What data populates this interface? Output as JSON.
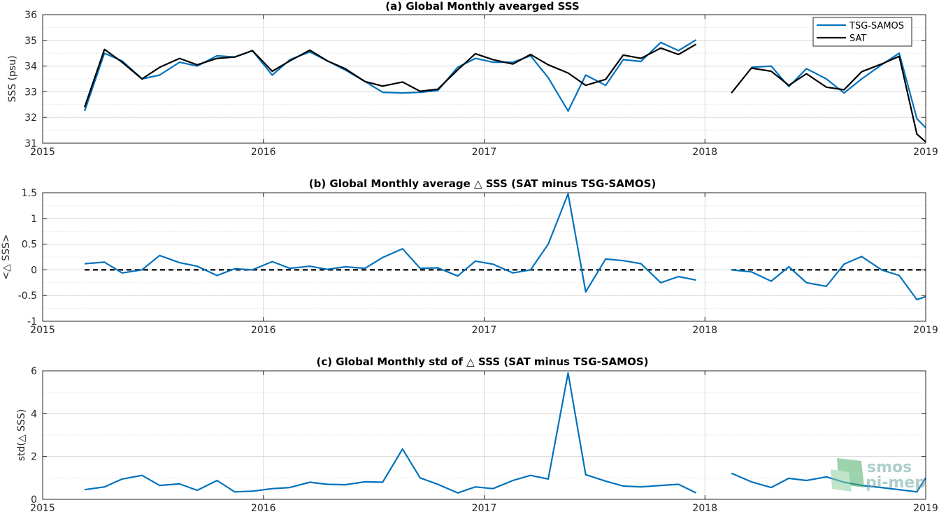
{
  "figure": {
    "logo": {
      "line1": "smos",
      "line2": "pi-mep"
    }
  },
  "colors": {
    "tsg": "#0072BD",
    "sat": "#000000",
    "zero_line": "#000000",
    "grid": "#d9d9d9"
  },
  "chart_data": [
    {
      "type": "line",
      "title": "(a) Global Monthly avearged SSS",
      "xlabel": "",
      "ylabel": "SSS (psu)",
      "xlim": [
        2015,
        2019
      ],
      "ylim": [
        31,
        36
      ],
      "xticks": [
        2015,
        2016,
        2017,
        2018,
        2019
      ],
      "yticks": [
        31,
        32,
        33,
        34,
        35,
        36
      ],
      "grid": true,
      "legend": "top-right",
      "series": [
        {
          "name": "TSG-SAMOS",
          "color": "#0072BD",
          "x": [
            2015.19,
            2015.28,
            2015.36,
            2015.45,
            2015.53,
            2015.62,
            2015.7,
            2015.79,
            2015.87,
            2015.95,
            2016.04,
            2016.12,
            2016.21,
            2016.29,
            2016.37,
            2016.46,
            2016.54,
            2016.63,
            2016.71,
            2016.79,
            2016.88,
            2016.96,
            2017.04,
            2017.13,
            2017.21,
            2017.29,
            2017.38,
            2017.46,
            2017.55,
            2017.63,
            2017.71,
            2017.8,
            2017.88,
            2017.96,
            null,
            2018.21,
            2018.3,
            2018.38,
            2018.46,
            2018.55,
            2018.63,
            2018.71,
            2018.8,
            2018.88,
            2018.96,
            2019.0
          ],
          "y": [
            32.25,
            34.5,
            34.2,
            33.5,
            33.65,
            34.15,
            34.0,
            34.4,
            34.35,
            34.6,
            33.65,
            34.25,
            34.55,
            34.2,
            33.85,
            33.4,
            32.98,
            32.95,
            32.98,
            33.05,
            33.95,
            34.3,
            34.15,
            34.15,
            34.4,
            33.55,
            32.25,
            33.65,
            33.25,
            34.25,
            34.18,
            34.92,
            34.6,
            35.02,
            null,
            33.95,
            34.0,
            33.2,
            33.9,
            33.5,
            32.95,
            33.5,
            34.05,
            34.5,
            31.95,
            31.6
          ]
        },
        {
          "name": "SAT",
          "color": "#000000",
          "x": [
            2015.19,
            2015.28,
            2015.36,
            2015.45,
            2015.53,
            2015.62,
            2015.7,
            2015.79,
            2015.87,
            2015.95,
            2016.04,
            2016.12,
            2016.21,
            2016.29,
            2016.37,
            2016.46,
            2016.54,
            2016.63,
            2016.71,
            2016.79,
            2016.88,
            2016.96,
            2017.04,
            2017.13,
            2017.21,
            2017.29,
            2017.38,
            2017.46,
            2017.55,
            2017.63,
            2017.71,
            2017.8,
            2017.88,
            2017.96,
            null,
            2018.12,
            2018.21,
            2018.3,
            2018.38,
            2018.46,
            2018.55,
            2018.63,
            2018.71,
            2018.8,
            2018.88,
            2018.96,
            2019.0
          ],
          "y": [
            32.4,
            34.65,
            34.15,
            33.5,
            33.95,
            34.3,
            34.05,
            34.3,
            34.35,
            34.6,
            33.8,
            34.2,
            34.62,
            34.2,
            33.9,
            33.4,
            33.22,
            33.38,
            33.02,
            33.1,
            33.85,
            34.48,
            34.25,
            34.08,
            34.45,
            34.05,
            33.73,
            33.25,
            33.48,
            34.43,
            34.3,
            34.7,
            34.45,
            34.85,
            null,
            32.95,
            33.92,
            33.8,
            33.25,
            33.7,
            33.18,
            33.08,
            33.78,
            34.08,
            34.38,
            31.35,
            31.05
          ]
        }
      ]
    },
    {
      "type": "line",
      "title": "(b) Global Monthly average △ SSS (SAT minus TSG-SAMOS)",
      "xlabel": "",
      "ylabel": "<△ SSS>",
      "xlim": [
        2015,
        2019
      ],
      "ylim": [
        -1,
        1.5
      ],
      "xticks": [
        2015,
        2016,
        2017,
        2018,
        2019
      ],
      "yticks": [
        -1,
        -0.5,
        0,
        0.5,
        1,
        1.5
      ],
      "ytick_labels": [
        "-1",
        "-0.5",
        "0",
        "0.5",
        "1",
        "1.5"
      ],
      "grid": true,
      "zero_line_segments": [
        [
          2015.19,
          2017.96
        ],
        [
          2018.12,
          2019.0
        ]
      ],
      "series": [
        {
          "color": "#0072BD",
          "x": [
            2015.19,
            2015.28,
            2015.36,
            2015.45,
            2015.53,
            2015.62,
            2015.7,
            2015.79,
            2015.87,
            2015.95,
            2016.04,
            2016.12,
            2016.21,
            2016.29,
            2016.37,
            2016.46,
            2016.54,
            2016.63,
            2016.71,
            2016.79,
            2016.88,
            2016.96,
            2017.04,
            2017.13,
            2017.21,
            2017.29,
            2017.38,
            2017.46,
            2017.55,
            2017.63,
            2017.71,
            2017.8,
            2017.88,
            2017.96,
            null,
            2018.12,
            2018.21,
            2018.3,
            2018.38,
            2018.46,
            2018.55,
            2018.63,
            2018.71,
            2018.8,
            2018.88,
            2018.96,
            2019.0
          ],
          "y": [
            0.12,
            0.15,
            -0.06,
            0.0,
            0.28,
            0.14,
            0.07,
            -0.11,
            0.02,
            0.0,
            0.16,
            0.03,
            0.07,
            0.01,
            0.06,
            0.03,
            0.24,
            0.41,
            0.03,
            0.04,
            -0.12,
            0.17,
            0.11,
            -0.06,
            0.0,
            0.5,
            1.48,
            -0.43,
            0.21,
            0.18,
            0.12,
            -0.25,
            -0.13,
            -0.2,
            null,
            0.0,
            -0.04,
            -0.22,
            0.06,
            -0.25,
            -0.32,
            0.11,
            0.26,
            0.0,
            -0.11,
            -0.58,
            -0.52
          ]
        }
      ]
    },
    {
      "type": "line",
      "title": "(c) Global Monthly std of △ SSS (SAT minus TSG-SAMOS)",
      "xlabel": "",
      "ylabel": "std(△ SSS)",
      "xlim": [
        2015,
        2019
      ],
      "ylim": [
        0,
        6
      ],
      "xticks": [
        2015,
        2016,
        2017,
        2018,
        2019
      ],
      "yticks": [
        0,
        2,
        4,
        6
      ],
      "grid": true,
      "series": [
        {
          "color": "#0072BD",
          "x": [
            2015.19,
            2015.28,
            2015.36,
            2015.45,
            2015.53,
            2015.62,
            2015.7,
            2015.79,
            2015.87,
            2015.95,
            2016.04,
            2016.12,
            2016.21,
            2016.29,
            2016.37,
            2016.46,
            2016.54,
            2016.63,
            2016.71,
            2016.79,
            2016.88,
            2016.96,
            2017.04,
            2017.13,
            2017.21,
            2017.29,
            2017.38,
            2017.46,
            2017.55,
            2017.63,
            2017.71,
            2017.8,
            2017.88,
            2017.96,
            null,
            2018.12,
            2018.21,
            2018.3,
            2018.38,
            2018.46,
            2018.55,
            2018.63,
            2018.71,
            2018.8,
            2018.88,
            2018.96,
            2019.0
          ],
          "y": [
            0.45,
            0.58,
            0.95,
            1.12,
            0.65,
            0.72,
            0.42,
            0.88,
            0.35,
            0.38,
            0.5,
            0.55,
            0.8,
            0.7,
            0.68,
            0.82,
            0.8,
            2.35,
            1.0,
            0.7,
            0.3,
            0.58,
            0.5,
            0.88,
            1.12,
            0.95,
            5.9,
            1.15,
            0.85,
            0.62,
            0.58,
            0.65,
            0.7,
            0.3,
            null,
            1.22,
            0.82,
            0.55,
            0.98,
            0.88,
            1.05,
            0.8,
            0.65,
            0.55,
            0.45,
            0.35,
            1.0
          ]
        }
      ]
    }
  ]
}
